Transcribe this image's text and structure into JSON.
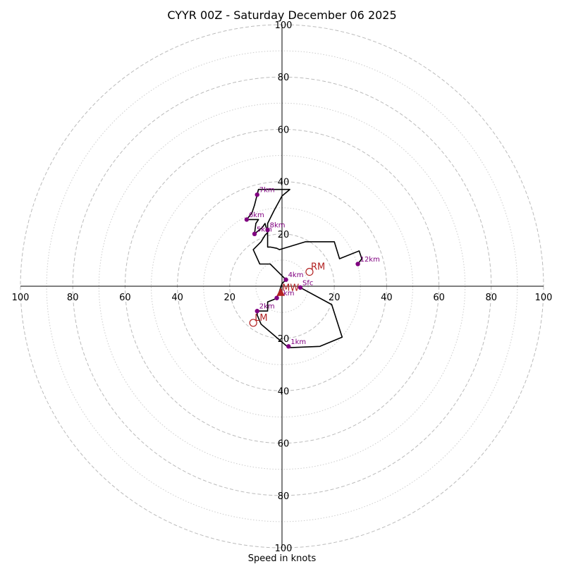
{
  "chart_data": {
    "type": "hodograph",
    "title": "CYYR 00Z - Saturday December 06 2025",
    "xlabel": "Speed in knots",
    "max_speed": 100,
    "ring_speeds_major": [
      20,
      40,
      60,
      80,
      100
    ],
    "ring_speeds_minor": [
      10,
      30,
      50,
      70,
      90
    ],
    "x_tick_labels": [
      "100",
      "80",
      "60",
      "40",
      "20",
      "20",
      "40",
      "60",
      "80",
      "100"
    ],
    "y_tick_labels": [
      "100",
      "80",
      "60",
      "40",
      "20",
      "20",
      "40",
      "60",
      "80",
      "100"
    ],
    "colors": {
      "trace": "#000000",
      "height_points": "#800080",
      "motion": "#b22222",
      "grid": "#bbbbbb",
      "axes": "#000000"
    },
    "trace": [
      {
        "u": 7,
        "v": -0.5
      },
      {
        "u": 19,
        "v": -7
      },
      {
        "u": 23,
        "v": -19.5
      },
      {
        "u": 14.5,
        "v": -23
      },
      {
        "u": 2.5,
        "v": -23.5
      },
      {
        "u": -8,
        "v": -14.5
      },
      {
        "u": -9.5,
        "v": -11
      },
      {
        "u": -9.5,
        "v": -9.5
      },
      {
        "u": -5.5,
        "v": -9.5
      },
      {
        "u": -5.5,
        "v": -6
      },
      {
        "u": -3,
        "v": -5
      },
      {
        "u": -2,
        "v": -4.5
      },
      {
        "u": -1,
        "v": -2
      },
      {
        "u": -0.5,
        "v": -0.5
      },
      {
        "u": 0,
        "v": 1
      },
      {
        "u": 1.5,
        "v": 2.5
      },
      {
        "u": -4.5,
        "v": 8.5
      },
      {
        "u": -8.5,
        "v": 8.5
      },
      {
        "u": -11,
        "v": 14
      },
      {
        "u": -8,
        "v": 17
      },
      {
        "u": -6.5,
        "v": 19.5
      },
      {
        "u": -5.5,
        "v": 20.5
      },
      {
        "u": -6.5,
        "v": 24
      },
      {
        "u": -7.5,
        "v": 22.5
      },
      {
        "u": -10.5,
        "v": 20
      },
      {
        "u": -10,
        "v": 24
      },
      {
        "u": -9,
        "v": 25.5
      },
      {
        "u": -13.5,
        "v": 25.5
      },
      {
        "u": -11.5,
        "v": 28
      },
      {
        "u": -10.5,
        "v": 31
      },
      {
        "u": -9.5,
        "v": 35
      },
      {
        "u": -9,
        "v": 37
      },
      {
        "u": 3,
        "v": 37
      },
      {
        "u": 0,
        "v": 34.5
      },
      {
        "u": -3,
        "v": 29
      },
      {
        "u": -5.5,
        "v": 24
      },
      {
        "u": -5.5,
        "v": 19.5
      },
      {
        "u": -5.5,
        "v": 15
      },
      {
        "u": -4.5,
        "v": 15
      },
      {
        "u": -2,
        "v": 14.5
      },
      {
        "u": -1,
        "v": 14
      },
      {
        "u": 9,
        "v": 17
      },
      {
        "u": 20,
        "v": 17
      },
      {
        "u": 22,
        "v": 10.5
      },
      {
        "u": 29.5,
        "v": 13.5
      },
      {
        "u": 30.5,
        "v": 10.5
      },
      {
        "u": 29,
        "v": 8.5
      }
    ],
    "height_points": [
      {
        "label": "Sfc",
        "u": 7,
        "v": -0.5
      },
      {
        "label": "1km",
        "u": 2.5,
        "v": -23
      },
      {
        "label": "2km",
        "u": -9.5,
        "v": -9.5
      },
      {
        "label": "3km",
        "u": -2,
        "v": -4.5
      },
      {
        "label": "4km",
        "u": 1.5,
        "v": 2.5
      },
      {
        "label": "5km",
        "u": -10.5,
        "v": 20
      },
      {
        "label": "6km",
        "u": -13.5,
        "v": 25.5
      },
      {
        "label": "7km",
        "u": -9.5,
        "v": 35
      },
      {
        "label": "8km",
        "u": -5.5,
        "v": 21.5
      },
      {
        "label": "12km",
        "u": 29,
        "v": 8.5
      }
    ],
    "storm_motions": [
      {
        "label": "RM",
        "u": 10.5,
        "v": 5.5
      },
      {
        "label": "LM",
        "u": -11,
        "v": -14
      },
      {
        "label": "MW",
        "u": -0.5,
        "v": -2.5
      }
    ]
  }
}
